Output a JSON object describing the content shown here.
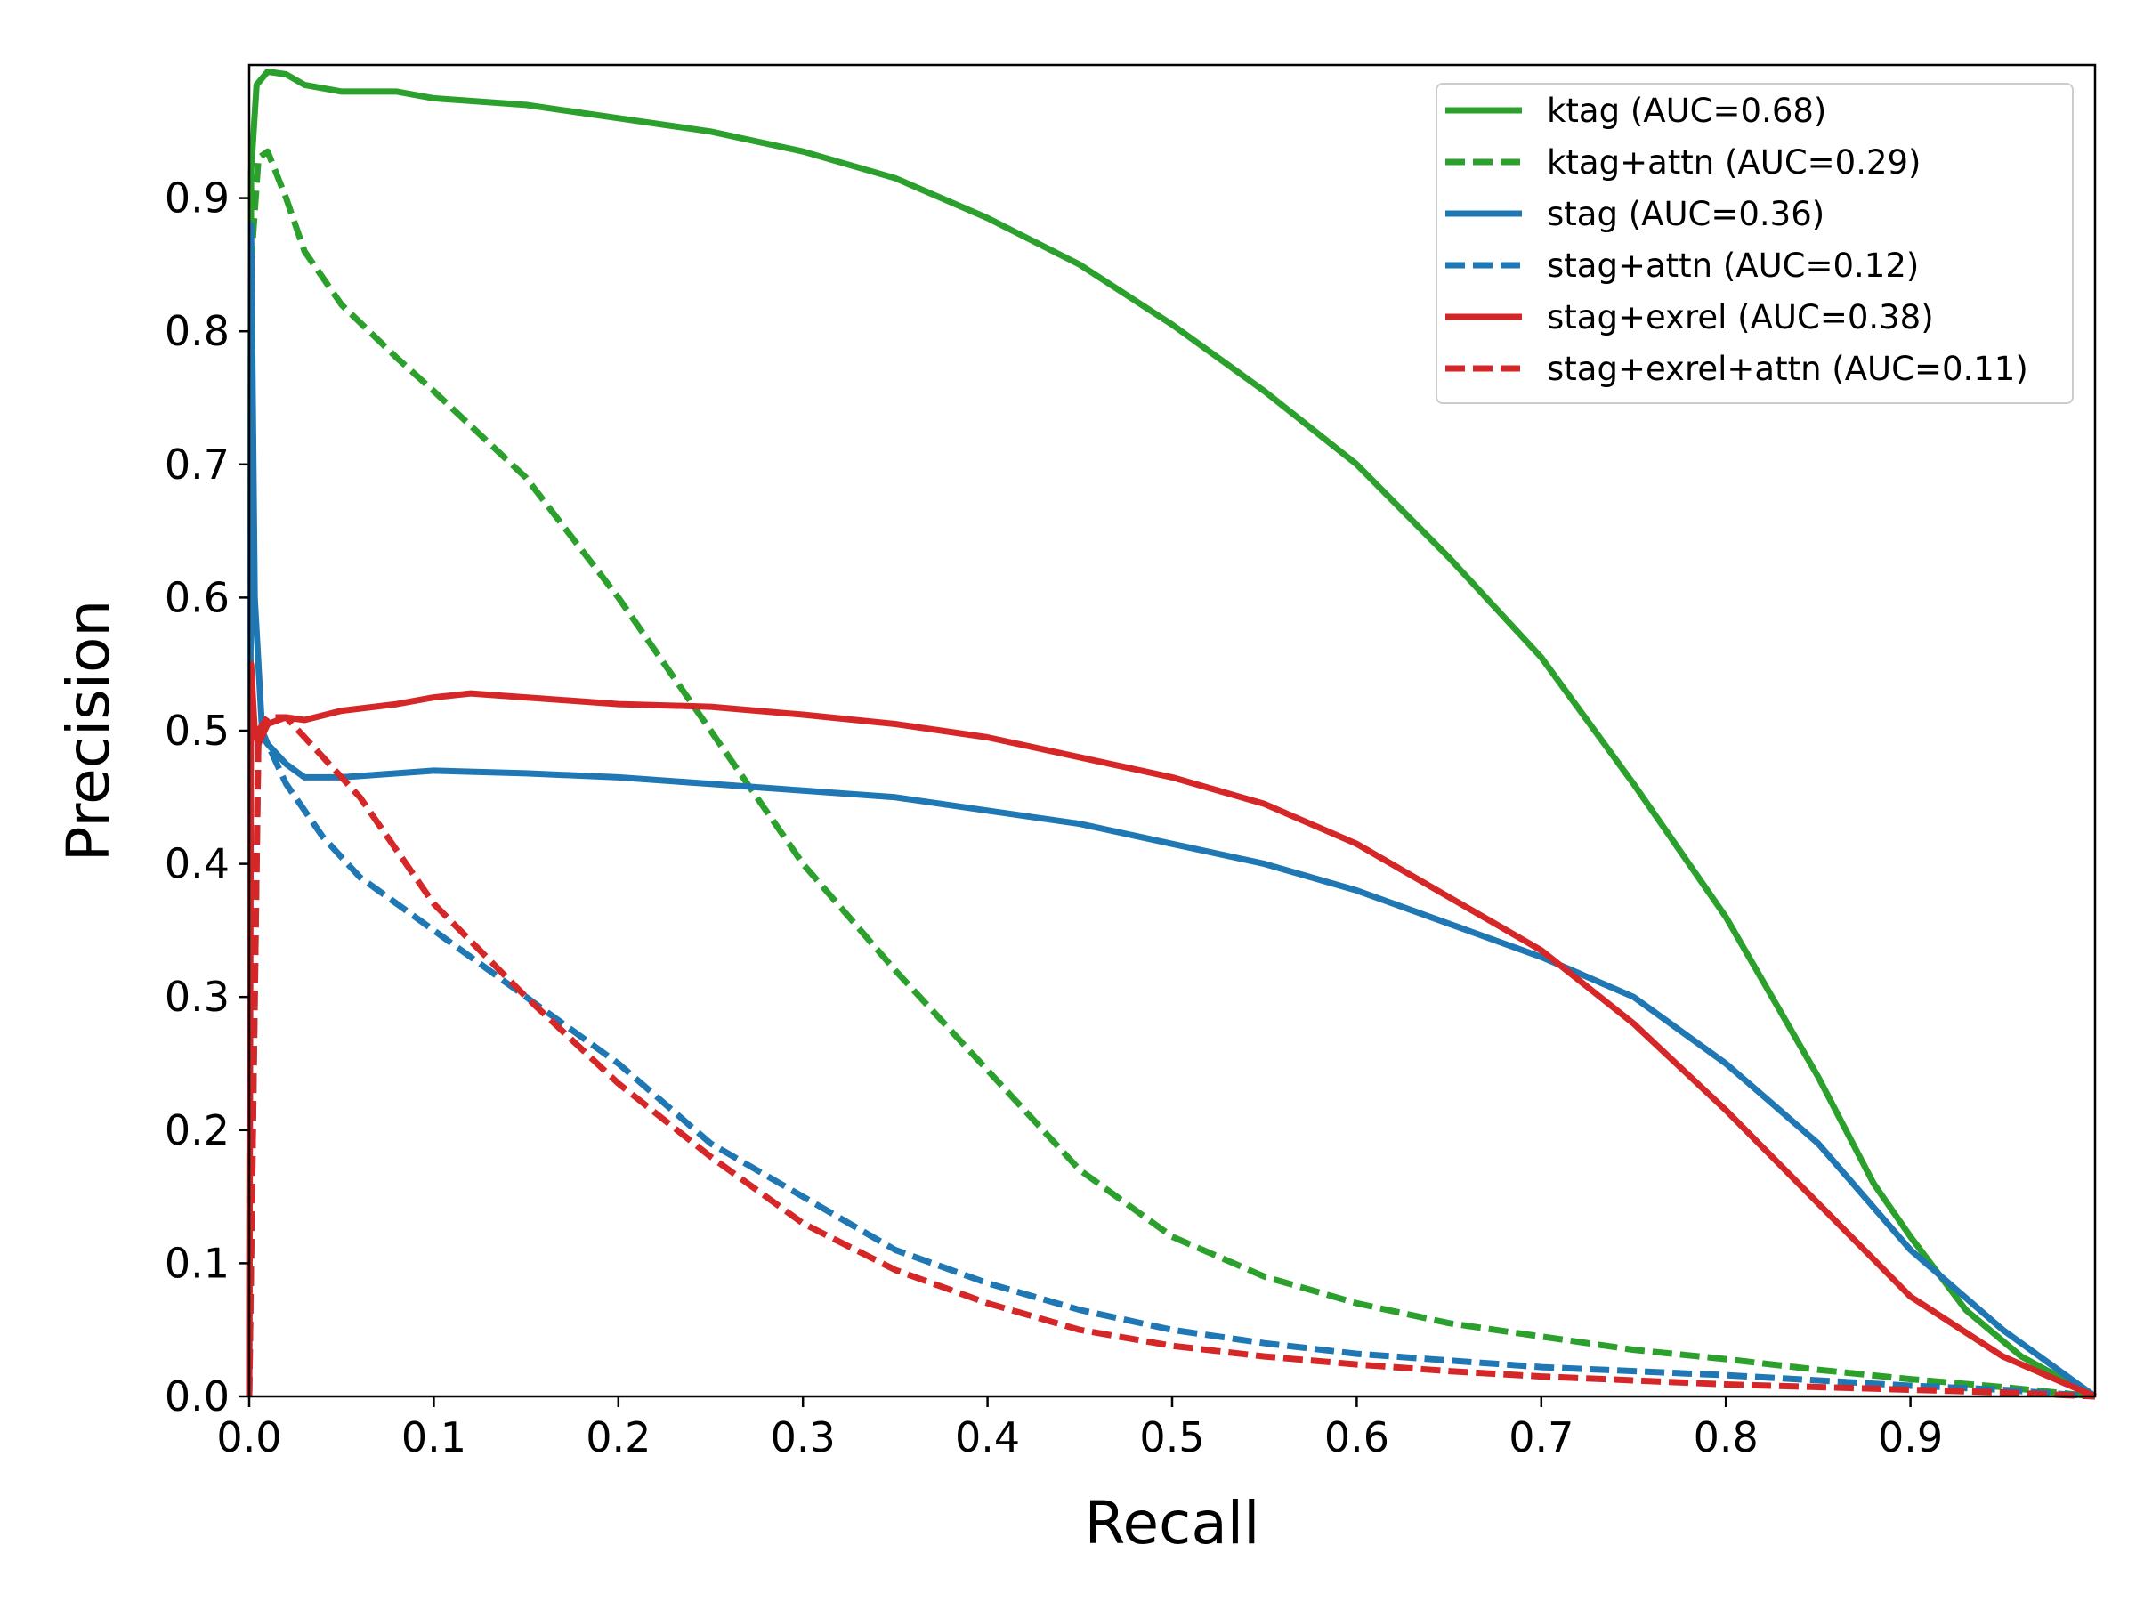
{
  "chart_data": {
    "type": "line",
    "title": "",
    "xlabel": "Recall",
    "ylabel": "Precision",
    "xlim": [
      0.0,
      1.0
    ],
    "ylim": [
      0.0,
      1.0
    ],
    "xticks": [
      "0.0",
      "0.1",
      "0.2",
      "0.3",
      "0.4",
      "0.5",
      "0.6",
      "0.7",
      "0.8",
      "0.9"
    ],
    "yticks": [
      "0.0",
      "0.1",
      "0.2",
      "0.3",
      "0.4",
      "0.5",
      "0.6",
      "0.7",
      "0.8",
      "0.9"
    ],
    "grid": false,
    "legend_position": "top-right",
    "series": [
      {
        "name": "ktag (AUC=0.68)",
        "color": "#2ca02c",
        "style": "solid",
        "points": [
          [
            0.0,
            0.0
          ],
          [
            0.001,
            0.92
          ],
          [
            0.004,
            0.985
          ],
          [
            0.01,
            0.995
          ],
          [
            0.02,
            0.993
          ],
          [
            0.03,
            0.985
          ],
          [
            0.05,
            0.98
          ],
          [
            0.08,
            0.98
          ],
          [
            0.1,
            0.975
          ],
          [
            0.15,
            0.97
          ],
          [
            0.2,
            0.96
          ],
          [
            0.25,
            0.95
          ],
          [
            0.3,
            0.935
          ],
          [
            0.35,
            0.915
          ],
          [
            0.4,
            0.885
          ],
          [
            0.45,
            0.85
          ],
          [
            0.5,
            0.805
          ],
          [
            0.55,
            0.755
          ],
          [
            0.6,
            0.7
          ],
          [
            0.65,
            0.63
          ],
          [
            0.7,
            0.555
          ],
          [
            0.75,
            0.46
          ],
          [
            0.8,
            0.36
          ],
          [
            0.85,
            0.24
          ],
          [
            0.88,
            0.16
          ],
          [
            0.9,
            0.12
          ],
          [
            0.93,
            0.065
          ],
          [
            0.96,
            0.03
          ],
          [
            0.98,
            0.015
          ],
          [
            1.0,
            0.0
          ]
        ]
      },
      {
        "name": "ktag+attn (AUC=0.29)",
        "color": "#2ca02c",
        "style": "dashed",
        "points": [
          [
            0.0,
            0.0
          ],
          [
            0.001,
            0.85
          ],
          [
            0.005,
            0.93
          ],
          [
            0.01,
            0.935
          ],
          [
            0.02,
            0.9
          ],
          [
            0.03,
            0.86
          ],
          [
            0.05,
            0.82
          ],
          [
            0.08,
            0.78
          ],
          [
            0.1,
            0.755
          ],
          [
            0.15,
            0.69
          ],
          [
            0.2,
            0.6
          ],
          [
            0.25,
            0.5
          ],
          [
            0.3,
            0.4
          ],
          [
            0.35,
            0.32
          ],
          [
            0.4,
            0.245
          ],
          [
            0.45,
            0.17
          ],
          [
            0.5,
            0.12
          ],
          [
            0.55,
            0.09
          ],
          [
            0.6,
            0.07
          ],
          [
            0.65,
            0.055
          ],
          [
            0.7,
            0.045
          ],
          [
            0.75,
            0.035
          ],
          [
            0.8,
            0.028
          ],
          [
            0.85,
            0.02
          ],
          [
            0.9,
            0.013
          ],
          [
            0.95,
            0.007
          ],
          [
            1.0,
            0.0
          ]
        ]
      },
      {
        "name": "stag (AUC=0.36)",
        "color": "#1f77b4",
        "style": "solid",
        "points": [
          [
            0.0,
            0.0
          ],
          [
            0.001,
            0.88
          ],
          [
            0.003,
            0.6
          ],
          [
            0.007,
            0.5
          ],
          [
            0.01,
            0.49
          ],
          [
            0.02,
            0.475
          ],
          [
            0.03,
            0.465
          ],
          [
            0.05,
            0.465
          ],
          [
            0.08,
            0.468
          ],
          [
            0.1,
            0.47
          ],
          [
            0.15,
            0.468
          ],
          [
            0.2,
            0.465
          ],
          [
            0.25,
            0.46
          ],
          [
            0.3,
            0.455
          ],
          [
            0.35,
            0.45
          ],
          [
            0.4,
            0.44
          ],
          [
            0.45,
            0.43
          ],
          [
            0.5,
            0.415
          ],
          [
            0.55,
            0.4
          ],
          [
            0.6,
            0.38
          ],
          [
            0.65,
            0.355
          ],
          [
            0.7,
            0.33
          ],
          [
            0.75,
            0.3
          ],
          [
            0.8,
            0.25
          ],
          [
            0.85,
            0.19
          ],
          [
            0.9,
            0.11
          ],
          [
            0.95,
            0.05
          ],
          [
            0.98,
            0.02
          ],
          [
            1.0,
            0.0
          ]
        ]
      },
      {
        "name": "stag+attn (AUC=0.12)",
        "color": "#1f77b4",
        "style": "dashed",
        "points": [
          [
            0.0,
            0.0
          ],
          [
            0.005,
            0.5
          ],
          [
            0.01,
            0.49
          ],
          [
            0.02,
            0.46
          ],
          [
            0.04,
            0.42
          ],
          [
            0.06,
            0.39
          ],
          [
            0.08,
            0.37
          ],
          [
            0.1,
            0.35
          ],
          [
            0.15,
            0.3
          ],
          [
            0.2,
            0.25
          ],
          [
            0.25,
            0.19
          ],
          [
            0.3,
            0.15
          ],
          [
            0.35,
            0.11
          ],
          [
            0.4,
            0.085
          ],
          [
            0.45,
            0.065
          ],
          [
            0.5,
            0.05
          ],
          [
            0.55,
            0.04
          ],
          [
            0.6,
            0.032
          ],
          [
            0.65,
            0.027
          ],
          [
            0.7,
            0.022
          ],
          [
            0.75,
            0.019
          ],
          [
            0.8,
            0.016
          ],
          [
            0.85,
            0.012
          ],
          [
            0.9,
            0.008
          ],
          [
            0.95,
            0.005
          ],
          [
            1.0,
            0.0
          ]
        ]
      },
      {
        "name": "stag+exrel (AUC=0.38)",
        "color": "#d62728",
        "style": "solid",
        "points": [
          [
            0.0,
            0.0
          ],
          [
            0.001,
            0.55
          ],
          [
            0.003,
            0.5
          ],
          [
            0.005,
            0.49
          ],
          [
            0.01,
            0.505
          ],
          [
            0.02,
            0.51
          ],
          [
            0.03,
            0.508
          ],
          [
            0.05,
            0.515
          ],
          [
            0.08,
            0.52
          ],
          [
            0.1,
            0.525
          ],
          [
            0.12,
            0.528
          ],
          [
            0.15,
            0.525
          ],
          [
            0.2,
            0.52
          ],
          [
            0.25,
            0.518
          ],
          [
            0.3,
            0.512
          ],
          [
            0.35,
            0.505
          ],
          [
            0.4,
            0.495
          ],
          [
            0.45,
            0.48
          ],
          [
            0.5,
            0.465
          ],
          [
            0.55,
            0.445
          ],
          [
            0.6,
            0.415
          ],
          [
            0.65,
            0.375
          ],
          [
            0.7,
            0.335
          ],
          [
            0.75,
            0.28
          ],
          [
            0.8,
            0.215
          ],
          [
            0.85,
            0.145
          ],
          [
            0.9,
            0.075
          ],
          [
            0.95,
            0.03
          ],
          [
            1.0,
            0.0
          ]
        ]
      },
      {
        "name": "stag+exrel+attn (AUC=0.11)",
        "color": "#d62728",
        "style": "dashed",
        "points": [
          [
            0.0,
            0.0
          ],
          [
            0.005,
            0.5
          ],
          [
            0.01,
            0.51
          ],
          [
            0.02,
            0.51
          ],
          [
            0.04,
            0.48
          ],
          [
            0.06,
            0.45
          ],
          [
            0.08,
            0.41
          ],
          [
            0.1,
            0.37
          ],
          [
            0.15,
            0.3
          ],
          [
            0.2,
            0.235
          ],
          [
            0.25,
            0.18
          ],
          [
            0.3,
            0.13
          ],
          [
            0.35,
            0.095
          ],
          [
            0.4,
            0.07
          ],
          [
            0.45,
            0.05
          ],
          [
            0.5,
            0.038
          ],
          [
            0.55,
            0.03
          ],
          [
            0.6,
            0.024
          ],
          [
            0.65,
            0.019
          ],
          [
            0.7,
            0.015
          ],
          [
            0.75,
            0.012
          ],
          [
            0.8,
            0.009
          ],
          [
            0.85,
            0.007
          ],
          [
            0.9,
            0.005
          ],
          [
            0.95,
            0.003
          ],
          [
            1.0,
            0.0
          ]
        ]
      }
    ]
  }
}
